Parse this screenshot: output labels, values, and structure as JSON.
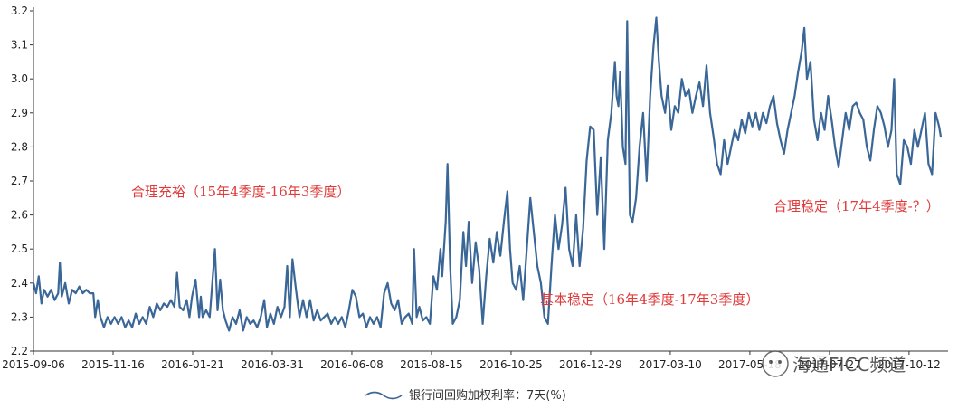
{
  "chart_data": {
    "type": "line",
    "title": "",
    "xlabel": "",
    "ylabel": "",
    "ylim": [
      2.2,
      3.2
    ],
    "y_ticks": [
      "2.2",
      "2.3",
      "2.4",
      "2.5",
      "2.6",
      "2.7",
      "2.8",
      "2.9",
      "3.0",
      "3.1",
      "3.2"
    ],
    "x_ticks": [
      "2015-09-06",
      "2015-11-16",
      "2016-01-21",
      "2016-03-31",
      "2016-06-08",
      "2016-08-15",
      "2016-10-25",
      "2016-12-29",
      "2017-03-10",
      "2017-05-18",
      "2017-07-27",
      "2017-10-12"
    ],
    "grid": false,
    "legend": "bottom-center",
    "color": "#3a6797",
    "series": [
      {
        "name": "银行间回购加权利率：7天(%)",
        "values": [
          [
            0,
            2.4
          ],
          [
            3,
            2.37
          ],
          [
            6,
            2.42
          ],
          [
            9,
            2.34
          ],
          [
            12,
            2.38
          ],
          [
            16,
            2.36
          ],
          [
            20,
            2.38
          ],
          [
            24,
            2.35
          ],
          [
            28,
            2.37
          ],
          [
            30,
            2.46
          ],
          [
            32,
            2.36
          ],
          [
            36,
            2.4
          ],
          [
            40,
            2.34
          ],
          [
            44,
            2.38
          ],
          [
            48,
            2.37
          ],
          [
            52,
            2.39
          ],
          [
            56,
            2.37
          ],
          [
            60,
            2.38
          ],
          [
            64,
            2.37
          ],
          [
            68,
            2.37
          ],
          [
            70,
            2.3
          ],
          [
            73,
            2.35
          ],
          [
            76,
            2.3
          ],
          [
            80,
            2.27
          ],
          [
            84,
            2.3
          ],
          [
            88,
            2.28
          ],
          [
            92,
            2.3
          ],
          [
            96,
            2.28
          ],
          [
            100,
            2.3
          ],
          [
            104,
            2.27
          ],
          [
            108,
            2.29
          ],
          [
            112,
            2.27
          ],
          [
            116,
            2.31
          ],
          [
            120,
            2.28
          ],
          [
            124,
            2.3
          ],
          [
            128,
            2.28
          ],
          [
            132,
            2.33
          ],
          [
            136,
            2.3
          ],
          [
            140,
            2.34
          ],
          [
            144,
            2.32
          ],
          [
            148,
            2.34
          ],
          [
            152,
            2.33
          ],
          [
            156,
            2.35
          ],
          [
            160,
            2.33
          ],
          [
            163,
            2.43
          ],
          [
            166,
            2.33
          ],
          [
            170,
            2.32
          ],
          [
            174,
            2.35
          ],
          [
            177,
            2.3
          ],
          [
            180,
            2.36
          ],
          [
            184,
            2.41
          ],
          [
            188,
            2.3
          ],
          [
            190,
            2.36
          ],
          [
            192,
            2.3
          ],
          [
            196,
            2.32
          ],
          [
            200,
            2.3
          ],
          [
            203,
            2.4
          ],
          [
            206,
            2.5
          ],
          [
            209,
            2.32
          ],
          [
            212,
            2.41
          ],
          [
            215,
            2.32
          ],
          [
            218,
            2.29
          ],
          [
            222,
            2.26
          ],
          [
            226,
            2.3
          ],
          [
            230,
            2.28
          ],
          [
            234,
            2.32
          ],
          [
            238,
            2.26
          ],
          [
            242,
            2.3
          ],
          [
            246,
            2.28
          ],
          [
            250,
            2.29
          ],
          [
            254,
            2.27
          ],
          [
            258,
            2.3
          ],
          [
            262,
            2.35
          ],
          [
            265,
            2.27
          ],
          [
            269,
            2.31
          ],
          [
            273,
            2.28
          ],
          [
            277,
            2.33
          ],
          [
            281,
            2.3
          ],
          [
            285,
            2.33
          ],
          [
            288,
            2.45
          ],
          [
            291,
            2.3
          ],
          [
            294,
            2.47
          ],
          [
            298,
            2.38
          ],
          [
            302,
            2.3
          ],
          [
            306,
            2.35
          ],
          [
            310,
            2.3
          ],
          [
            314,
            2.35
          ],
          [
            318,
            2.29
          ],
          [
            322,
            2.32
          ],
          [
            326,
            2.29
          ],
          [
            330,
            2.3
          ],
          [
            334,
            2.31
          ],
          [
            338,
            2.28
          ],
          [
            342,
            2.3
          ],
          [
            346,
            2.28
          ],
          [
            350,
            2.3
          ],
          [
            354,
            2.27
          ],
          [
            358,
            2.32
          ],
          [
            362,
            2.38
          ],
          [
            366,
            2.36
          ],
          [
            370,
            2.3
          ],
          [
            374,
            2.31
          ],
          [
            378,
            2.27
          ],
          [
            382,
            2.3
          ],
          [
            386,
            2.28
          ],
          [
            390,
            2.3
          ],
          [
            394,
            2.27
          ],
          [
            398,
            2.37
          ],
          [
            402,
            2.4
          ],
          [
            406,
            2.34
          ],
          [
            410,
            2.32
          ],
          [
            414,
            2.35
          ],
          [
            418,
            2.28
          ],
          [
            422,
            2.3
          ],
          [
            426,
            2.31
          ],
          [
            430,
            2.28
          ],
          [
            432,
            2.5
          ],
          [
            435,
            2.3
          ],
          [
            438,
            2.33
          ],
          [
            442,
            2.29
          ],
          [
            446,
            2.3
          ],
          [
            450,
            2.28
          ],
          [
            454,
            2.42
          ],
          [
            458,
            2.38
          ],
          [
            462,
            2.5
          ],
          [
            464,
            2.42
          ],
          [
            468,
            2.58
          ],
          [
            470,
            2.75
          ],
          [
            473,
            2.45
          ],
          [
            476,
            2.28
          ],
          [
            480,
            2.3
          ],
          [
            484,
            2.35
          ],
          [
            488,
            2.55
          ],
          [
            491,
            2.45
          ],
          [
            494,
            2.58
          ],
          [
            498,
            2.4
          ],
          [
            502,
            2.52
          ],
          [
            506,
            2.44
          ],
          [
            510,
            2.28
          ],
          [
            514,
            2.42
          ],
          [
            518,
            2.53
          ],
          [
            522,
            2.46
          ],
          [
            526,
            2.55
          ],
          [
            530,
            2.48
          ],
          [
            534,
            2.58
          ],
          [
            538,
            2.67
          ],
          [
            541,
            2.5
          ],
          [
            544,
            2.4
          ],
          [
            548,
            2.38
          ],
          [
            552,
            2.45
          ],
          [
            556,
            2.35
          ],
          [
            560,
            2.5
          ],
          [
            564,
            2.65
          ],
          [
            568,
            2.55
          ],
          [
            572,
            2.45
          ],
          [
            576,
            2.4
          ],
          [
            580,
            2.3
          ],
          [
            584,
            2.28
          ],
          [
            588,
            2.45
          ],
          [
            592,
            2.6
          ],
          [
            596,
            2.5
          ],
          [
            600,
            2.57
          ],
          [
            604,
            2.68
          ],
          [
            608,
            2.5
          ],
          [
            612,
            2.45
          ],
          [
            616,
            2.6
          ],
          [
            620,
            2.45
          ],
          [
            624,
            2.56
          ],
          [
            628,
            2.76
          ],
          [
            632,
            2.86
          ],
          [
            636,
            2.85
          ],
          [
            640,
            2.6
          ],
          [
            644,
            2.77
          ],
          [
            648,
            2.5
          ],
          [
            652,
            2.82
          ],
          [
            656,
            2.9
          ],
          [
            660,
            3.05
          ],
          [
            662,
            2.95
          ],
          [
            664,
            2.92
          ],
          [
            666,
            3.02
          ],
          [
            669,
            2.8
          ],
          [
            672,
            2.75
          ],
          [
            674,
            3.17
          ],
          [
            677,
            2.6
          ],
          [
            680,
            2.58
          ],
          [
            684,
            2.65
          ],
          [
            688,
            2.8
          ],
          [
            692,
            2.9
          ],
          [
            696,
            2.7
          ],
          [
            700,
            2.95
          ],
          [
            704,
            3.1
          ],
          [
            707,
            3.18
          ],
          [
            710,
            3.05
          ],
          [
            713,
            2.95
          ],
          [
            717,
            2.9
          ],
          [
            720,
            2.98
          ],
          [
            724,
            2.85
          ],
          [
            728,
            2.92
          ],
          [
            732,
            2.9
          ],
          [
            736,
            3.0
          ],
          [
            740,
            2.95
          ],
          [
            744,
            2.97
          ],
          [
            748,
            2.9
          ],
          [
            752,
            2.95
          ],
          [
            756,
            2.99
          ],
          [
            760,
            2.92
          ],
          [
            764,
            3.04
          ],
          [
            768,
            2.9
          ],
          [
            772,
            2.83
          ],
          [
            776,
            2.75
          ],
          [
            780,
            2.72
          ],
          [
            784,
            2.82
          ],
          [
            788,
            2.75
          ],
          [
            792,
            2.8
          ],
          [
            796,
            2.85
          ],
          [
            800,
            2.82
          ],
          [
            804,
            2.88
          ],
          [
            808,
            2.84
          ],
          [
            812,
            2.9
          ],
          [
            816,
            2.86
          ],
          [
            820,
            2.9
          ],
          [
            824,
            2.85
          ],
          [
            828,
            2.9
          ],
          [
            832,
            2.87
          ],
          [
            836,
            2.92
          ],
          [
            840,
            2.95
          ],
          [
            844,
            2.87
          ],
          [
            848,
            2.82
          ],
          [
            852,
            2.78
          ],
          [
            856,
            2.85
          ],
          [
            860,
            2.9
          ],
          [
            864,
            2.95
          ],
          [
            868,
            3.02
          ],
          [
            872,
            3.08
          ],
          [
            875,
            3.15
          ],
          [
            878,
            3.0
          ],
          [
            882,
            3.05
          ],
          [
            886,
            2.88
          ],
          [
            890,
            2.82
          ],
          [
            894,
            2.9
          ],
          [
            898,
            2.85
          ],
          [
            902,
            2.95
          ],
          [
            906,
            2.88
          ],
          [
            910,
            2.8
          ],
          [
            914,
            2.74
          ],
          [
            918,
            2.82
          ],
          [
            922,
            2.9
          ],
          [
            926,
            2.85
          ],
          [
            930,
            2.92
          ],
          [
            934,
            2.93
          ],
          [
            938,
            2.9
          ],
          [
            942,
            2.88
          ],
          [
            946,
            2.8
          ],
          [
            950,
            2.76
          ],
          [
            954,
            2.85
          ],
          [
            958,
            2.92
          ],
          [
            962,
            2.9
          ],
          [
            966,
            2.86
          ],
          [
            970,
            2.8
          ],
          [
            974,
            2.85
          ],
          [
            977,
            3.0
          ],
          [
            980,
            2.72
          ],
          [
            984,
            2.69
          ],
          [
            988,
            2.82
          ],
          [
            992,
            2.8
          ],
          [
            996,
            2.75
          ],
          [
            1000,
            2.85
          ],
          [
            1004,
            2.8
          ],
          [
            1008,
            2.85
          ],
          [
            1012,
            2.9
          ],
          [
            1016,
            2.75
          ],
          [
            1020,
            2.72
          ],
          [
            1024,
            2.9
          ],
          [
            1028,
            2.86
          ],
          [
            1030,
            2.83
          ]
        ]
      }
    ],
    "annotations": [
      {
        "text": "合理充裕（15年4季度-16年3季度）"
      },
      {
        "text": "基本稳定（16年4季度-17年3季度）"
      },
      {
        "text": "合理稳定（17年4季度-？）"
      }
    ]
  },
  "legend": {
    "label": "银行间回购加权利率：7天(%)"
  },
  "watermark": {
    "text": "海通FICC频道"
  }
}
